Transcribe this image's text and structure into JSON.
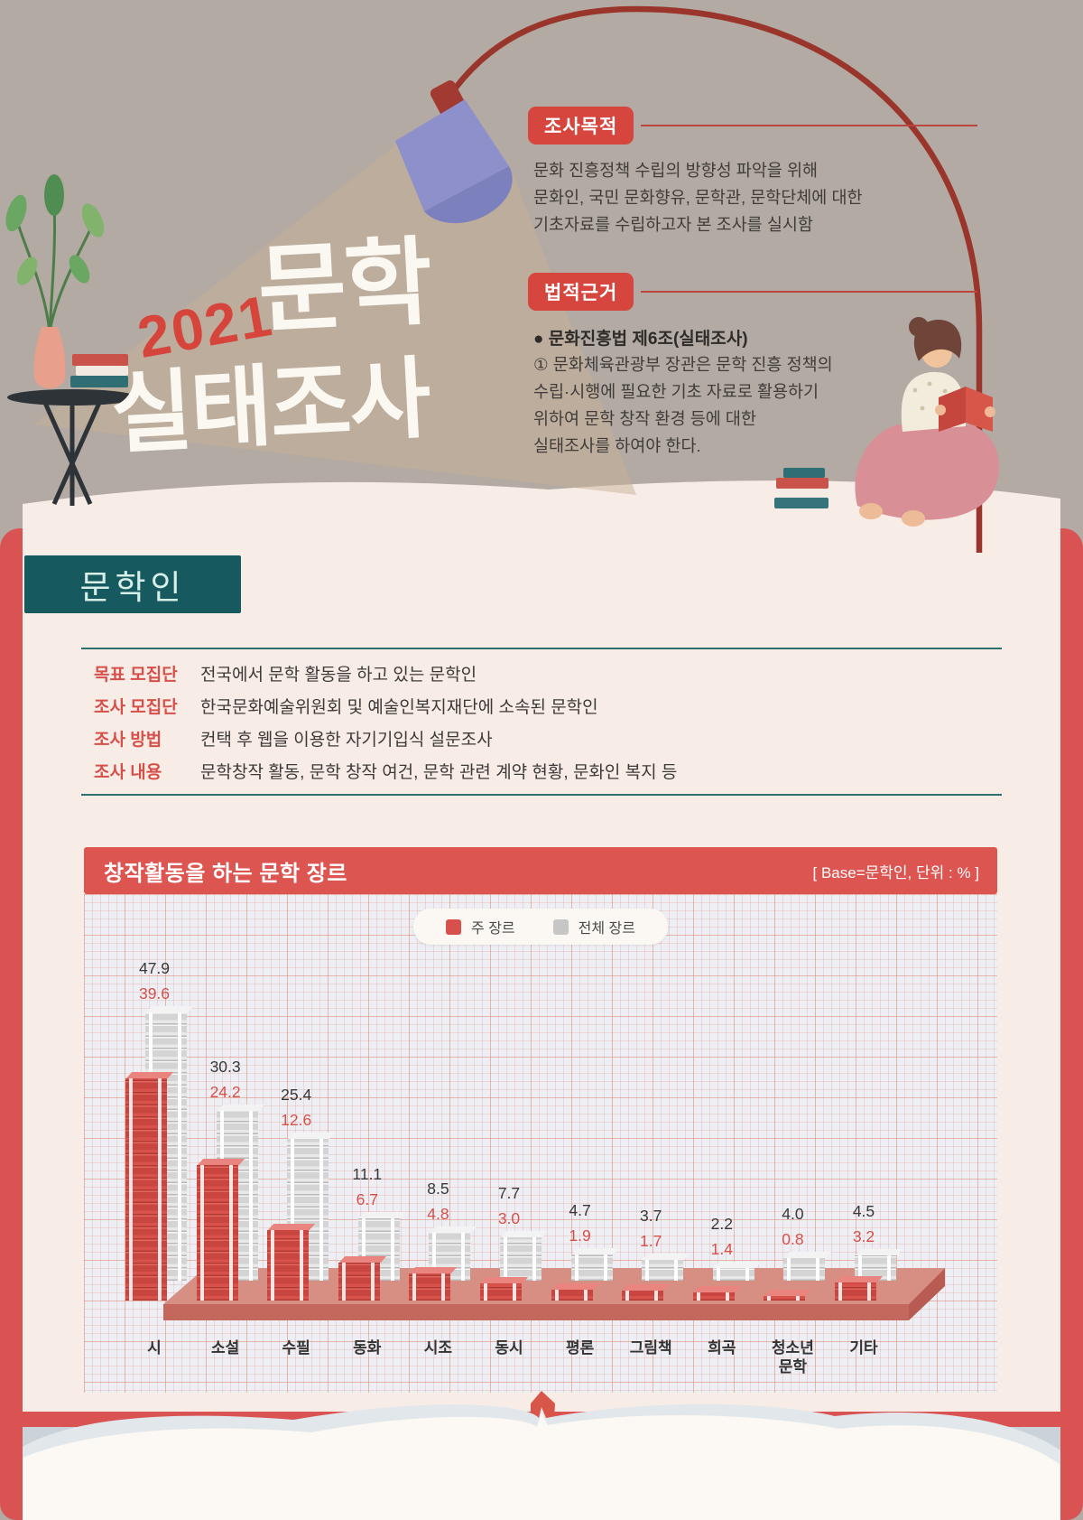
{
  "header": {
    "year": "2021",
    "title_line1": "문학",
    "title_line2": "실태조사",
    "purpose": {
      "tag": "조사목적",
      "body": "문화 진흥정책 수립의 방향성 파악을 위해\n문화인, 국민 문화향유, 문학관, 문학단체에 대한\n기초자료를 수립하고자 본 조사를 실시함"
    },
    "legal": {
      "tag": "법적근거",
      "law": "● 문화진흥법 제6조(실태조사)",
      "body": "① 문화체육관광부 장관은 문학 진흥 정책의\n수립·시행에 필요한 기초 자료로 활용하기\n위하여 문학 창작 환경 등에 대한\n실태조사를 하여야 한다."
    }
  },
  "section": {
    "title": "문학인",
    "rows": [
      {
        "label": "목표 모집단",
        "text": "전국에서 문학 활동을 하고 있는 문학인"
      },
      {
        "label": "조사 모집단",
        "text": "한국문화예술위원회 및 예술인복지재단에 소속된 문학인"
      },
      {
        "label": "조사 방법",
        "text": "컨택 후 웹을 이용한 자기기입식 설문조사"
      },
      {
        "label": "조사 내용",
        "text": "문학창작 활동, 문학 창작 여건, 문학 관련 계약 현황, 문화인 복지 등"
      }
    ]
  },
  "chart": {
    "title": "창작활동을 하는 문학 장르",
    "base_note": "[ Base=문학인, 단위 : % ]",
    "legend": [
      {
        "label": "주 장르",
        "color": "#d6514b"
      },
      {
        "label": "전체 장르",
        "color": "#c6c6c6"
      }
    ]
  },
  "chart_data": {
    "type": "bar",
    "title": "창작활동을 하는 문학 장르",
    "base": "문학인",
    "unit": "%",
    "categories": [
      "시",
      "소설",
      "수필",
      "동화",
      "시조",
      "동시",
      "평론",
      "그림책",
      "희곡",
      "청소년\n문학",
      "기타"
    ],
    "series": [
      {
        "name": "주 장르",
        "color": "#d6514b",
        "values": [
          39.6,
          24.2,
          12.6,
          6.7,
          4.8,
          3.0,
          1.9,
          1.7,
          1.4,
          0.8,
          3.2
        ]
      },
      {
        "name": "전체 장르",
        "color": "#c6c6c6",
        "values": [
          47.9,
          30.3,
          25.4,
          11.1,
          8.5,
          7.7,
          4.7,
          3.7,
          2.2,
          4.0,
          4.5
        ]
      }
    ],
    "value_label_colors": {
      "주 장르": "#d6504a",
      "전체 장르": "#383838"
    },
    "legend_position": "top-center",
    "grid": true,
    "ylim": [
      0,
      50
    ]
  },
  "colors": {
    "accent_red": "#d6453e",
    "frame_red": "#d95353",
    "chart_header_red": "#dd5551",
    "teal": "#165a60",
    "divider_teal": "#2f6f6e",
    "cream": "#f8ece7",
    "top_background": "#b2aaa3",
    "plot_background": "#edeff5",
    "platform_salmon": "#d78f83"
  }
}
